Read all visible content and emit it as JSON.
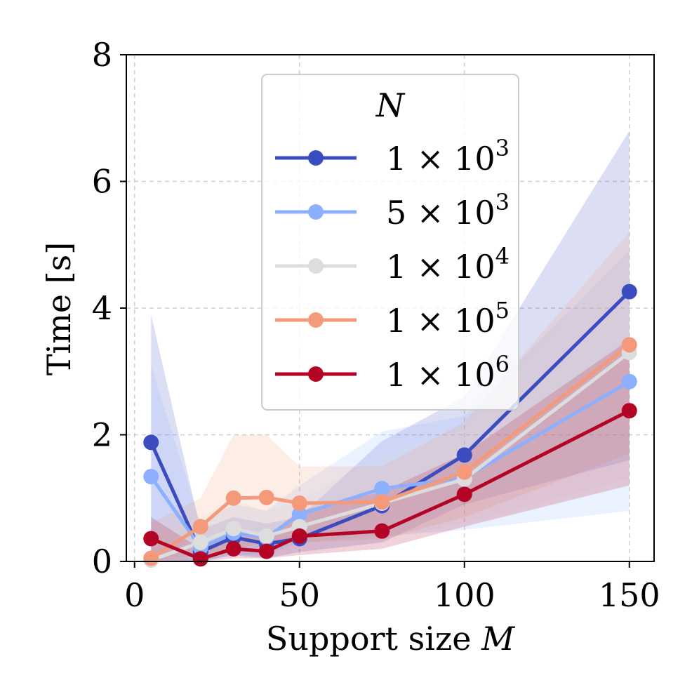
{
  "chart_data": {
    "type": "line",
    "title": "",
    "xlabel_text": "Support size ",
    "xlabel_var": "M",
    "ylabel": "Time [s]",
    "xlim": [
      -2.5,
      157.5
    ],
    "ylim": [
      0,
      8
    ],
    "xticks": [
      0,
      50,
      100,
      150
    ],
    "yticks": [
      0,
      2,
      4,
      6,
      8
    ],
    "grid": true,
    "legend_placement": "upper-center",
    "legend_title": "N",
    "x": [
      5,
      20,
      30,
      40,
      50,
      75,
      100,
      150
    ],
    "series": [
      {
        "name_mant": "1 × 10",
        "name_exp": "3",
        "color": "#3b4cc0",
        "values": [
          1.88,
          0.15,
          0.38,
          0.28,
          0.36,
          0.88,
          1.68,
          4.26
        ],
        "lower": [
          0.0,
          0.0,
          0.1,
          0.05,
          0.15,
          0.3,
          0.9,
          1.6
        ],
        "upper": [
          3.9,
          0.5,
          0.7,
          0.6,
          0.7,
          1.9,
          2.6,
          6.8
        ]
      },
      {
        "name_mant": "5 × 10",
        "name_exp": "3",
        "color": "#8db0fe",
        "values": [
          1.34,
          0.22,
          0.45,
          0.38,
          0.74,
          1.15,
          1.32,
          2.84
        ],
        "lower": [
          0.0,
          0.0,
          0.1,
          0.1,
          0.3,
          0.4,
          0.5,
          0.8
        ],
        "upper": [
          3.1,
          0.6,
          0.9,
          0.8,
          1.2,
          2.05,
          2.3,
          4.9
        ]
      },
      {
        "name_mant": "1 × 10",
        "name_exp": "4",
        "color": "#dddddd",
        "values": [
          0.02,
          0.3,
          0.52,
          0.4,
          0.55,
          0.92,
          1.3,
          3.3
        ],
        "lower": [
          0.0,
          0.05,
          0.2,
          0.1,
          0.25,
          0.35,
          0.6,
          1.3
        ],
        "upper": [
          0.4,
          0.7,
          0.95,
          0.8,
          0.95,
          1.7,
          2.1,
          5.0
        ]
      },
      {
        "name_mant": "1 × 10",
        "name_exp": "5",
        "color": "#f49a7b",
        "values": [
          0.05,
          0.55,
          1.0,
          1.01,
          0.92,
          0.94,
          1.41,
          3.42
        ],
        "lower": [
          0.0,
          0.1,
          0.2,
          0.3,
          0.3,
          0.35,
          0.7,
          1.7
        ],
        "upper": [
          0.6,
          1.0,
          2.0,
          2.0,
          1.5,
          1.5,
          2.2,
          5.2
        ]
      },
      {
        "name_mant": "1 × 10",
        "name_exp": "6",
        "color": "#b40426",
        "values": [
          0.36,
          0.04,
          0.2,
          0.16,
          0.4,
          0.48,
          1.06,
          2.38
        ],
        "lower": [
          0.0,
          0.0,
          0.05,
          0.05,
          0.1,
          0.2,
          0.55,
          1.2
        ],
        "upper": [
          0.7,
          0.2,
          0.5,
          0.4,
          0.8,
          1.1,
          1.7,
          3.5
        ]
      }
    ]
  }
}
